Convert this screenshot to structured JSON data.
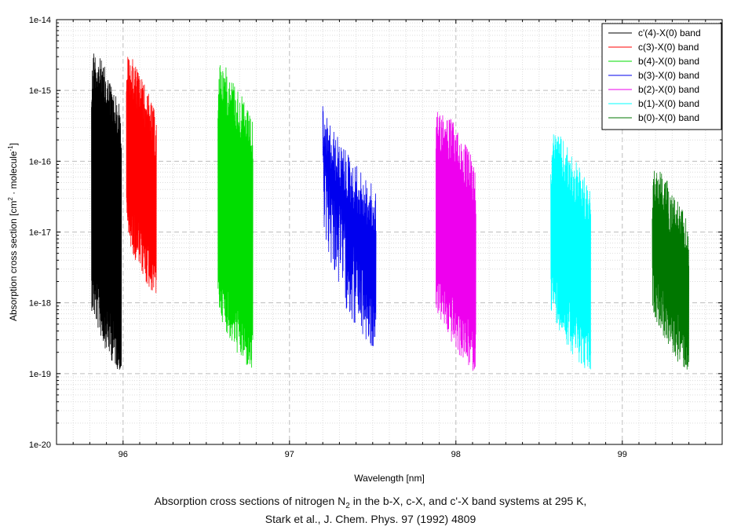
{
  "chart_data": {
    "type": "line",
    "ylabel": "Absorption cross section [cm",
    "ylabel_parts": {
      "pre": "Absorption cross section [cm",
      "sup1": "2",
      "mid": " · molecule",
      "sup2": "-1",
      "post": "]"
    },
    "xlabel": "Wavelength [nm]",
    "xlim": [
      95.6,
      99.6
    ],
    "ylim": [
      1e-20,
      1e-14
    ],
    "yscale": "log",
    "grid": true,
    "x_ticks": [
      "96",
      "97",
      "98",
      "99"
    ],
    "y_ticks": [
      "1e-20",
      "1e-19",
      "1e-18",
      "1e-17",
      "1e-16",
      "1e-15",
      "1e-14"
    ],
    "legend_placement": "top-right",
    "series": [
      {
        "name": "c'(4)-X(0) band",
        "color": "#000000",
        "x_range": [
          95.81,
          95.99
        ],
        "peak": 4.2e-15,
        "floor": 1e-19,
        "shape": "decay"
      },
      {
        "name": "c(3)-X(0) band",
        "color": "#ff0000",
        "x_range": [
          96.02,
          96.2
        ],
        "peak": 3.5e-15,
        "floor": 1.2e-18,
        "shape": "decay"
      },
      {
        "name": "b(4)-X(0) band",
        "color": "#00dd00",
        "x_range": [
          96.57,
          96.78
        ],
        "peak": 2.8e-15,
        "floor": 1e-19,
        "shape": "decay"
      },
      {
        "name": "b(3)-X(0) band",
        "color": "#0000ee",
        "x_range": [
          97.2,
          97.52
        ],
        "peak": 6e-16,
        "floor": 2e-19,
        "shape": "slope"
      },
      {
        "name": "b(2)-X(0) band",
        "color": "#ee00ee",
        "x_range": [
          97.88,
          98.12
        ],
        "peak": 7e-16,
        "floor": 1e-19,
        "shape": "decay"
      },
      {
        "name": "b(1)-X(0) band",
        "color": "#00ffff",
        "x_range": [
          98.57,
          98.81
        ],
        "peak": 3e-16,
        "floor": 1e-19,
        "shape": "decay"
      },
      {
        "name": "b(0)-X(0) band",
        "color": "#007700",
        "x_range": [
          99.18,
          99.4
        ],
        "peak": 1e-16,
        "floor": 1e-19,
        "shape": "decay"
      }
    ]
  },
  "caption": {
    "line1_pre": "Absorption cross sections of nitrogen N",
    "line1_sub": "2",
    "line1_post": " in the b-X, c-X, and c'-X band systems at 295 K,",
    "line2": "Stark et al., J. Chem. Phys. 97 (1992) 4809"
  }
}
